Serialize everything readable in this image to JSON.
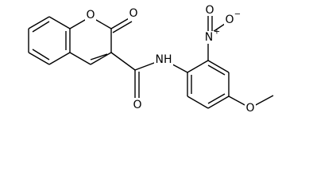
{
  "atoms": {
    "ring_oxygen": "O",
    "lactone_oxygen": "O",
    "amide_oxygen": "O",
    "amide_nitrogen": "NH",
    "nitro_nitrogen": "N",
    "nitro_nitrogen_charge": "+",
    "nitro_oxygen": "O",
    "nitro_oxide": "O",
    "nitro_oxide_charge": "−",
    "methoxy_oxygen": "O"
  }
}
